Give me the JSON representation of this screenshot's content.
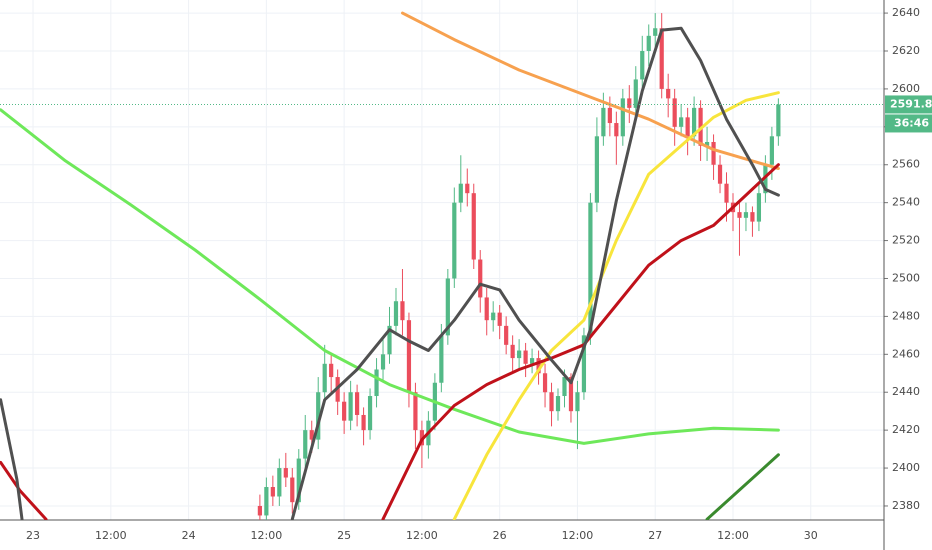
{
  "chart_data": {
    "type": "candlestick",
    "up_color": "#53b987",
    "down_color": "#eb4d5c",
    "grid": true,
    "xlim": [
      -5.1,
      131.3
    ],
    "ylim": [
      2372.6,
      2646.9
    ],
    "xticks": [
      {
        "value": 0,
        "label": "23"
      },
      {
        "value": 12,
        "label": "12:00"
      },
      {
        "value": 24,
        "label": "24"
      },
      {
        "value": 36,
        "label": "12:00"
      },
      {
        "value": 48,
        "label": "25"
      },
      {
        "value": 60,
        "label": "12:00"
      },
      {
        "value": 72,
        "label": "26"
      },
      {
        "value": 84,
        "label": "12:00"
      },
      {
        "value": 96,
        "label": "27"
      },
      {
        "value": 108,
        "label": "12:00"
      },
      {
        "value": 120,
        "label": "30"
      }
    ],
    "yticks": [
      2380,
      2400,
      2420,
      2440,
      2460,
      2480,
      2500,
      2520,
      2540,
      2560,
      2580,
      2600,
      2620,
      2640
    ],
    "last_price": 2591.8,
    "countdown": "36:46",
    "x": [
      35,
      36,
      37,
      38,
      39,
      40,
      41,
      42,
      43,
      44,
      45,
      46,
      47,
      48,
      49,
      50,
      51,
      52,
      53,
      54,
      55,
      56,
      57,
      58,
      59,
      60,
      61,
      62,
      63,
      64,
      65,
      66,
      67,
      68,
      69,
      70,
      71,
      72,
      73,
      74,
      75,
      76,
      77,
      78,
      79,
      80,
      81,
      82,
      83,
      84,
      85,
      86,
      87,
      88,
      89,
      90,
      91,
      92,
      93,
      94,
      95,
      96,
      97,
      98,
      99,
      100,
      101,
      102,
      103,
      104,
      105,
      106,
      107,
      108,
      109,
      110,
      111,
      112,
      113,
      114,
      115
    ],
    "open": [
      2380,
      2375,
      2390,
      2385,
      2400,
      2395,
      2382,
      2405,
      2420,
      2415,
      2440,
      2455,
      2448,
      2435,
      2425,
      2440,
      2428,
      2420,
      2438,
      2452,
      2460,
      2475,
      2488,
      2478,
      2440,
      2420,
      2412,
      2425,
      2445,
      2470,
      2500,
      2540,
      2550,
      2545,
      2510,
      2490,
      2478,
      2482,
      2475,
      2465,
      2458,
      2462,
      2455,
      2458,
      2450,
      2440,
      2430,
      2438,
      2448,
      2430,
      2440,
      2470,
      2540,
      2575,
      2590,
      2582,
      2575,
      2595,
      2590,
      2605,
      2620,
      2628,
      2632,
      2600,
      2595,
      2580,
      2585,
      2575,
      2590,
      2570,
      2572,
      2560,
      2550,
      2540,
      2535,
      2532,
      2535,
      2530,
      2545,
      2560,
      2575
    ],
    "high": [
      2386,
      2395,
      2396,
      2405,
      2408,
      2400,
      2410,
      2428,
      2425,
      2448,
      2465,
      2460,
      2452,
      2440,
      2446,
      2444,
      2432,
      2442,
      2458,
      2468,
      2485,
      2495,
      2505,
      2482,
      2445,
      2425,
      2430,
      2450,
      2476,
      2505,
      2548,
      2565,
      2558,
      2550,
      2515,
      2495,
      2488,
      2486,
      2480,
      2470,
      2468,
      2466,
      2463,
      2462,
      2455,
      2445,
      2442,
      2452,
      2450,
      2446,
      2474,
      2545,
      2585,
      2598,
      2596,
      2588,
      2600,
      2602,
      2612,
      2628,
      2634,
      2640,
      2640,
      2608,
      2600,
      2592,
      2590,
      2596,
      2594,
      2580,
      2576,
      2565,
      2556,
      2545,
      2540,
      2540,
      2538,
      2550,
      2565,
      2580,
      2595
    ],
    "low": [
      2368,
      2370,
      2380,
      2380,
      2390,
      2376,
      2378,
      2400,
      2408,
      2410,
      2435,
      2440,
      2428,
      2418,
      2420,
      2422,
      2412,
      2415,
      2432,
      2446,
      2455,
      2470,
      2470,
      2432,
      2410,
      2400,
      2405,
      2420,
      2440,
      2465,
      2495,
      2535,
      2538,
      2505,
      2482,
      2470,
      2472,
      2468,
      2460,
      2450,
      2452,
      2448,
      2450,
      2444,
      2432,
      2422,
      2425,
      2432,
      2424,
      2410,
      2436,
      2465,
      2535,
      2570,
      2575,
      2560,
      2570,
      2582,
      2585,
      2600,
      2612,
      2620,
      2595,
      2585,
      2570,
      2575,
      2565,
      2570,
      2562,
      2562,
      2552,
      2545,
      2530,
      2525,
      2512,
      2525,
      2522,
      2525,
      2540,
      2552,
      2570
    ],
    "close": [
      2375,
      2390,
      2385,
      2400,
      2395,
      2382,
      2405,
      2420,
      2415,
      2440,
      2455,
      2448,
      2435,
      2425,
      2440,
      2428,
      2420,
      2438,
      2452,
      2460,
      2475,
      2488,
      2478,
      2440,
      2420,
      2412,
      2425,
      2445,
      2470,
      2500,
      2540,
      2550,
      2545,
      2510,
      2490,
      2478,
      2482,
      2475,
      2465,
      2458,
      2462,
      2455,
      2458,
      2450,
      2440,
      2430,
      2438,
      2448,
      2430,
      2440,
      2470,
      2540,
      2575,
      2590,
      2582,
      2575,
      2595,
      2590,
      2605,
      2620,
      2628,
      2632,
      2600,
      2595,
      2580,
      2585,
      2575,
      2590,
      2570,
      2572,
      2560,
      2550,
      2540,
      2535,
      2532,
      2535,
      2530,
      2545,
      2560,
      2575,
      2591.8
    ],
    "lines": [
      {
        "color": "#6ee85a",
        "x": [
          -5,
          5,
          15,
          25,
          35,
          45,
          55,
          65,
          75,
          85,
          95,
          105,
          115
        ],
        "values": [
          2589,
          2562,
          2539,
          2515,
          2489,
          2462,
          2444,
          2431,
          2419,
          2413,
          2418,
          2421,
          2420
        ]
      },
      {
        "color": "#f7a14f",
        "x": [
          57,
          65,
          75,
          85,
          95,
          105,
          115
        ],
        "values": [
          2640,
          2626,
          2610,
          2597,
          2584,
          2568,
          2558
        ]
      },
      {
        "color": "#f8e53c",
        "x": [
          65,
          70,
          75,
          80,
          85,
          90,
          95,
          100,
          105,
          110,
          115
        ],
        "values": [
          2373,
          2407,
          2436,
          2462,
          2478,
          2520,
          2555,
          2570,
          2585,
          2594,
          2598
        ]
      },
      {
        "color": "#c0111a",
        "x": [
          -5,
          -2,
          2,
          null,
          54,
          60,
          65,
          70,
          75,
          80,
          85,
          90,
          95,
          100,
          105,
          110,
          115
        ],
        "values": [
          2403,
          2388,
          2373,
          null,
          2373,
          2415,
          2433,
          2444,
          2452,
          2458,
          2465,
          2486,
          2507,
          2520,
          2528,
          2544,
          2560
        ]
      },
      {
        "color": "#505050",
        "x": [
          -5,
          -2.5,
          -1.7,
          null,
          40,
          45,
          50,
          55,
          58,
          61,
          65,
          69,
          72,
          75,
          80,
          83,
          86,
          90,
          94,
          97,
          100,
          103,
          107,
          111,
          113,
          115
        ],
        "values": [
          2436,
          2394,
          2373,
          null,
          2373,
          2436,
          2452,
          2473,
          2467,
          2462,
          2478,
          2497,
          2494,
          2478,
          2457,
          2445,
          2473,
          2541,
          2599,
          2631,
          2632,
          2615,
          2584,
          2560,
          2547,
          2544
        ]
      },
      {
        "color": "#3a8a2e",
        "x": [
          104,
          115
        ],
        "values": [
          2373,
          2407
        ]
      }
    ]
  }
}
